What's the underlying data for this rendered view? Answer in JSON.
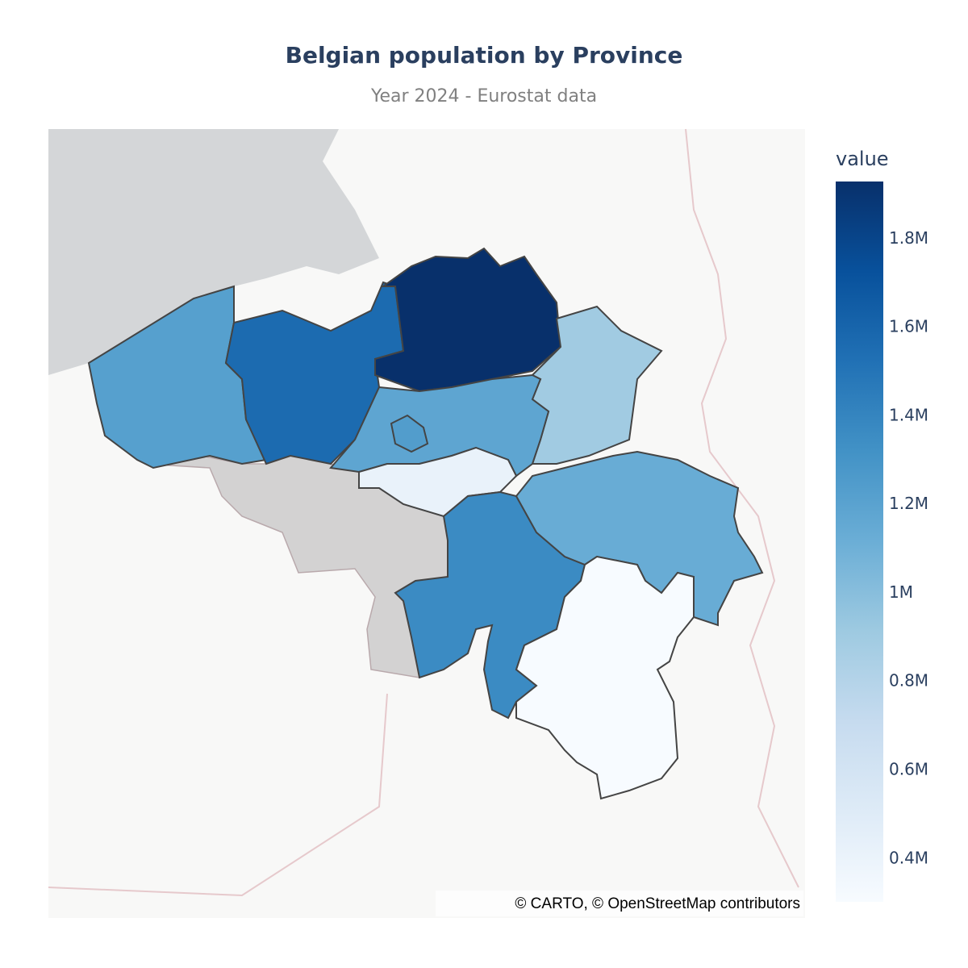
{
  "chart_data": {
    "type": "choropleth",
    "title": "Belgian population by Province",
    "subtitle": "Year 2024 - Eurostat data",
    "values": [
      1220000,
      1560000,
      1930000,
      900000,
      1180000,
      1240000,
      420000,
      1360000,
      1130000,
      303000
    ],
    "colorscale": [
      "#f7fbff",
      "#deebf7",
      "#c6dbef",
      "#9ecae1",
      "#6baed6",
      "#4292c6",
      "#2171b5",
      "#08519c",
      "#08306b"
    ],
    "colorbar_title": "value",
    "zlim": [
      303000,
      1930000
    ],
    "zticks": [
      {
        "value": 400000,
        "label": "0.4M"
      },
      {
        "value": 600000,
        "label": "0.6M"
      },
      {
        "value": 800000,
        "label": "0.8M"
      },
      {
        "value": 1000000,
        "label": "1M"
      },
      {
        "value": 1200000,
        "label": "1.2M"
      },
      {
        "value": 1400000,
        "label": "1.4M"
      },
      {
        "value": 1600000,
        "label": "1.6M"
      },
      {
        "value": 1800000,
        "label": "1.8M"
      }
    ],
    "attribution": "© CARTO, © OpenStreetMap contributors"
  }
}
